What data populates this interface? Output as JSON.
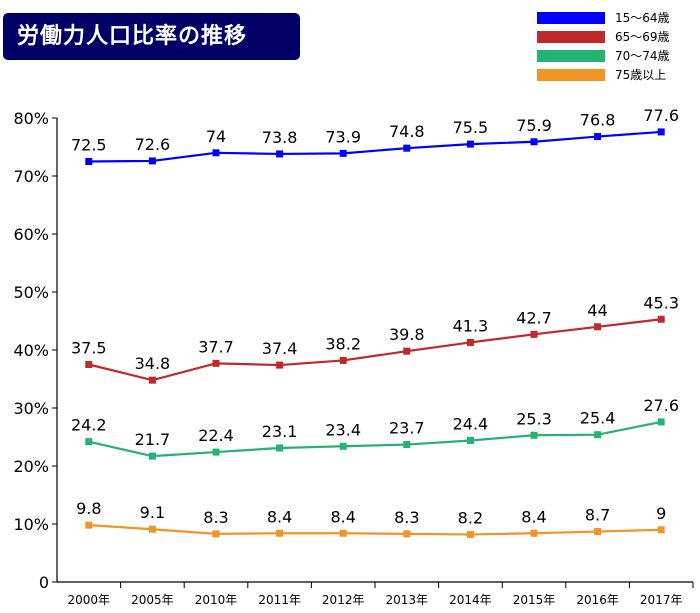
{
  "chart_data": {
    "type": "line",
    "title": "労働力人口比率の推移",
    "categories": [
      "2000年",
      "2005年",
      "2010年",
      "2011年",
      "2012年",
      "2013年",
      "2014年",
      "2015年",
      "2016年",
      "2017年"
    ],
    "ylim": [
      0,
      80
    ],
    "yticks": [
      "0",
      "10%",
      "20%",
      "30%",
      "40%",
      "50%",
      "60%",
      "70%",
      "80%"
    ],
    "grid": false,
    "legend": "top-right",
    "series": [
      {
        "name": "15～64歳",
        "color": "#0000ff",
        "values": [
          72.5,
          72.6,
          74,
          73.8,
          73.9,
          74.8,
          75.5,
          75.9,
          76.8,
          77.6
        ],
        "labels": [
          "72.5",
          "72.6",
          "74",
          "73.8",
          "73.9",
          "74.8",
          "75.5",
          "75.9",
          "76.8",
          "77.6"
        ]
      },
      {
        "name": "65～69歳",
        "color": "#c0282d",
        "values": [
          37.5,
          34.8,
          37.7,
          37.4,
          38.2,
          39.8,
          41.3,
          42.7,
          44,
          45.3
        ],
        "labels": [
          "37.5",
          "34.8",
          "37.7",
          "37.4",
          "38.2",
          "39.8",
          "41.3",
          "42.7",
          "44",
          "45.3"
        ]
      },
      {
        "name": "70～74歳",
        "color": "#25b373",
        "values": [
          24.2,
          21.7,
          22.4,
          23.1,
          23.4,
          23.7,
          24.4,
          25.3,
          25.4,
          27.6
        ],
        "labels": [
          "24.2",
          "21.7",
          "22.4",
          "23.1",
          "23.4",
          "23.7",
          "24.4",
          "25.3",
          "25.4",
          "27.6"
        ]
      },
      {
        "name": "75歳以上",
        "color": "#f39426",
        "values": [
          9.8,
          9.1,
          8.3,
          8.4,
          8.4,
          8.3,
          8.2,
          8.4,
          8.7,
          9
        ],
        "labels": [
          "9.8",
          "9.1",
          "8.3",
          "8.4",
          "8.4",
          "8.3",
          "8.2",
          "8.4",
          "8.7",
          "9"
        ]
      }
    ]
  }
}
